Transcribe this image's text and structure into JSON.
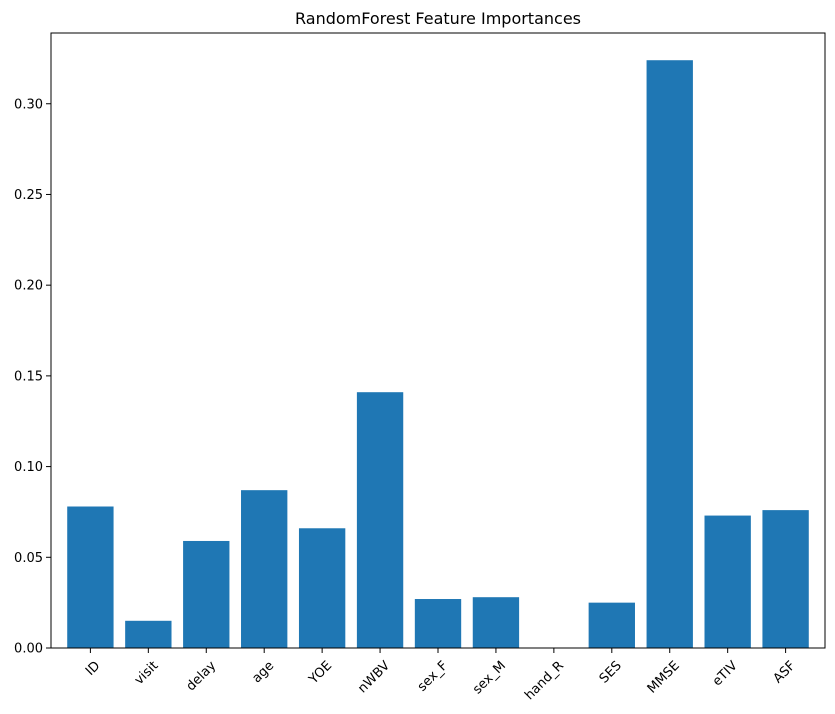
{
  "chart_data": {
    "type": "bar",
    "title": "RandomForest Feature Importances",
    "xlabel": "",
    "ylabel": "",
    "categories": [
      "ID",
      "visit",
      "delay",
      "age",
      "YOE",
      "nWBV",
      "sex_F",
      "sex_M",
      "hand_R",
      "SES",
      "MMSE",
      "eTIV",
      "ASF"
    ],
    "values": [
      0.078,
      0.015,
      0.059,
      0.087,
      0.066,
      0.141,
      0.027,
      0.028,
      0.0,
      0.025,
      0.324,
      0.073,
      0.076
    ],
    "ylim": [
      0,
      0.339
    ],
    "yticks": [
      "0.00",
      "0.05",
      "0.10",
      "0.15",
      "0.20",
      "0.25",
      "0.30"
    ],
    "bar_color": "#1f77b4",
    "grid": false,
    "legend": "none",
    "xtick_rotation": 45
  }
}
